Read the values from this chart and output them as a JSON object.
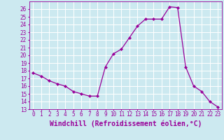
{
  "x": [
    0,
    1,
    2,
    3,
    4,
    5,
    6,
    7,
    8,
    9,
    10,
    11,
    12,
    13,
    14,
    15,
    16,
    17,
    18,
    19,
    20,
    21,
    22,
    23
  ],
  "y": [
    17.7,
    17.3,
    16.7,
    16.3,
    16.0,
    15.3,
    15.0,
    14.7,
    14.7,
    18.5,
    20.2,
    20.8,
    22.3,
    23.8,
    24.7,
    24.7,
    24.7,
    26.3,
    26.2,
    18.5,
    16.0,
    15.3,
    14.0,
    13.3
  ],
  "line_color": "#990099",
  "marker": "D",
  "marker_size": 2.2,
  "background_color": "#cce9f0",
  "grid_color": "#ffffff",
  "xlabel": "Windchill (Refroidissement éolien,°C)",
  "ylabel": "",
  "ylim": [
    13,
    27
  ],
  "xlim": [
    -0.5,
    23.5
  ],
  "yticks": [
    13,
    14,
    15,
    16,
    17,
    18,
    19,
    20,
    21,
    22,
    23,
    24,
    25,
    26
  ],
  "xticks": [
    0,
    1,
    2,
    3,
    4,
    5,
    6,
    7,
    8,
    9,
    10,
    11,
    12,
    13,
    14,
    15,
    16,
    17,
    18,
    19,
    20,
    21,
    22,
    23
  ],
  "tick_label_fontsize": 5.5,
  "xlabel_fontsize": 7.0
}
